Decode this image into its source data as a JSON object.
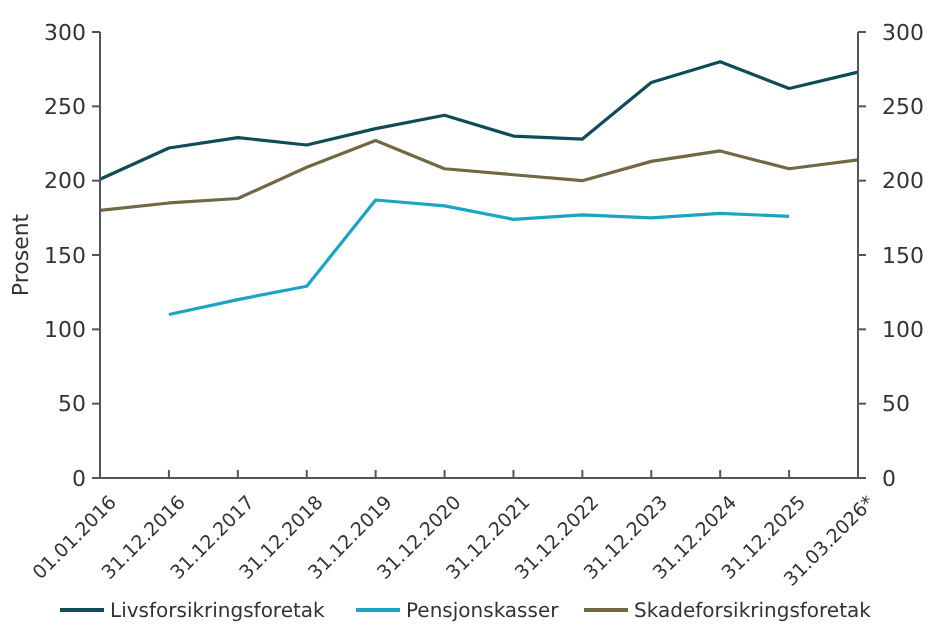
{
  "chart_data": {
    "type": "line",
    "ylabel": "Prosent",
    "categories": [
      "01.01.2016",
      "31.12.2016",
      "31.12.2017",
      "31.12.2018",
      "31.12.2019",
      "31.12.2020",
      "31.12.2021",
      "31.12.2022",
      "31.12.2023",
      "31.12.2024",
      "31.12.2025",
      "31.03.2026*"
    ],
    "series": [
      {
        "name": "Livsforsikringsforetak",
        "color": "#0f4c58",
        "values": [
          201,
          222,
          229,
          224,
          235,
          244,
          230,
          228,
          266,
          280,
          262,
          273
        ]
      },
      {
        "name": "Pensjonskasser",
        "color": "#1ba5c2",
        "values": [
          null,
          110,
          120,
          129,
          187,
          183,
          174,
          177,
          175,
          178,
          176,
          null
        ]
      },
      {
        "name": "Skadeforsikringsforetak",
        "color": "#716846",
        "values": [
          180,
          185,
          188,
          209,
          227,
          208,
          204,
          200,
          213,
          220,
          208,
          214
        ]
      }
    ],
    "ylim": [
      0,
      300
    ],
    "yticks": [
      0,
      50,
      100,
      150,
      200,
      250,
      300
    ],
    "y2lim": [
      0,
      300
    ],
    "y2ticks": [
      0,
      50,
      100,
      150,
      200,
      250,
      300
    ],
    "legend": "bottom",
    "grid": false
  }
}
